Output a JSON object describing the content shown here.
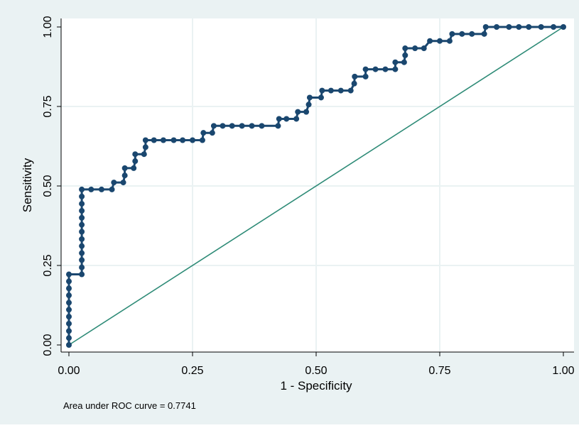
{
  "chart_data": {
    "type": "line",
    "title": "",
    "xlabel": "1 - Specificity",
    "ylabel": "Sensitivity",
    "xlim": [
      0,
      1
    ],
    "ylim": [
      0,
      1
    ],
    "xticks": [
      "0.00",
      "0.25",
      "0.50",
      "0.75",
      "1.00"
    ],
    "yticks": [
      "0.00",
      "0.25",
      "0.50",
      "0.75",
      "1.00"
    ],
    "grid": true,
    "note": "Area under ROC curve = 0.7741",
    "colors": {
      "background": "#eaf2f3",
      "plot_area": "#ffffff",
      "grid": "#eaf2f3",
      "roc_curve": "#1a476f",
      "reference_line": "#2e8b77",
      "text": "#000000"
    },
    "series": [
      {
        "values": [
          [
            0,
            0
          ],
          [
            0,
            0.022
          ],
          [
            0,
            0.044
          ],
          [
            0,
            0.067
          ],
          [
            0,
            0.089
          ],
          [
            0,
            0.111
          ],
          [
            0,
            0.133
          ],
          [
            0,
            0.156
          ],
          [
            0,
            0.178
          ],
          [
            0,
            0.2
          ],
          [
            0,
            0.222
          ],
          [
            0.026,
            0.222
          ],
          [
            0.026,
            0.244
          ],
          [
            0.026,
            0.267
          ],
          [
            0.026,
            0.289
          ],
          [
            0.026,
            0.311
          ],
          [
            0.026,
            0.333
          ],
          [
            0.026,
            0.356
          ],
          [
            0.026,
            0.378
          ],
          [
            0.026,
            0.4
          ],
          [
            0.026,
            0.422
          ],
          [
            0.026,
            0.444
          ],
          [
            0.026,
            0.467
          ],
          [
            0.026,
            0.489
          ],
          [
            0.045,
            0.489
          ],
          [
            0.066,
            0.489
          ],
          [
            0.087,
            0.489
          ],
          [
            0.091,
            0.511
          ],
          [
            0.11,
            0.511
          ],
          [
            0.113,
            0.533
          ],
          [
            0.113,
            0.556
          ],
          [
            0.131,
            0.556
          ],
          [
            0.134,
            0.578
          ],
          [
            0.134,
            0.6
          ],
          [
            0.152,
            0.6
          ],
          [
            0.155,
            0.622
          ],
          [
            0.155,
            0.644
          ],
          [
            0.172,
            0.644
          ],
          [
            0.191,
            0.644
          ],
          [
            0.212,
            0.644
          ],
          [
            0.23,
            0.644
          ],
          [
            0.25,
            0.644
          ],
          [
            0.27,
            0.644
          ],
          [
            0.272,
            0.667
          ],
          [
            0.29,
            0.667
          ],
          [
            0.293,
            0.689
          ],
          [
            0.311,
            0.689
          ],
          [
            0.33,
            0.689
          ],
          [
            0.35,
            0.689
          ],
          [
            0.37,
            0.689
          ],
          [
            0.39,
            0.689
          ],
          [
            0.423,
            0.689
          ],
          [
            0.425,
            0.711
          ],
          [
            0.44,
            0.711
          ],
          [
            0.46,
            0.711
          ],
          [
            0.463,
            0.733
          ],
          [
            0.48,
            0.733
          ],
          [
            0.485,
            0.756
          ],
          [
            0.487,
            0.778
          ],
          [
            0.51,
            0.778
          ],
          [
            0.512,
            0.8
          ],
          [
            0.53,
            0.8
          ],
          [
            0.55,
            0.8
          ],
          [
            0.57,
            0.8
          ],
          [
            0.577,
            0.822
          ],
          [
            0.578,
            0.844
          ],
          [
            0.6,
            0.844
          ],
          [
            0.6,
            0.867
          ],
          [
            0.62,
            0.867
          ],
          [
            0.64,
            0.867
          ],
          [
            0.66,
            0.867
          ],
          [
            0.66,
            0.889
          ],
          [
            0.678,
            0.889
          ],
          [
            0.68,
            0.911
          ],
          [
            0.68,
            0.933
          ],
          [
            0.7,
            0.933
          ],
          [
            0.718,
            0.933
          ],
          [
            0.73,
            0.956
          ],
          [
            0.75,
            0.956
          ],
          [
            0.77,
            0.956
          ],
          [
            0.775,
            0.978
          ],
          [
            0.795,
            0.978
          ],
          [
            0.815,
            0.978
          ],
          [
            0.84,
            0.978
          ],
          [
            0.843,
            1
          ],
          [
            0.865,
            1
          ],
          [
            0.89,
            1
          ],
          [
            0.91,
            1
          ],
          [
            0.93,
            1
          ],
          [
            0.955,
            1
          ],
          [
            0.98,
            1
          ],
          [
            1,
            1
          ]
        ]
      },
      {
        "type": "reference",
        "values": [
          [
            0,
            0
          ],
          [
            1,
            1
          ]
        ]
      }
    ]
  }
}
